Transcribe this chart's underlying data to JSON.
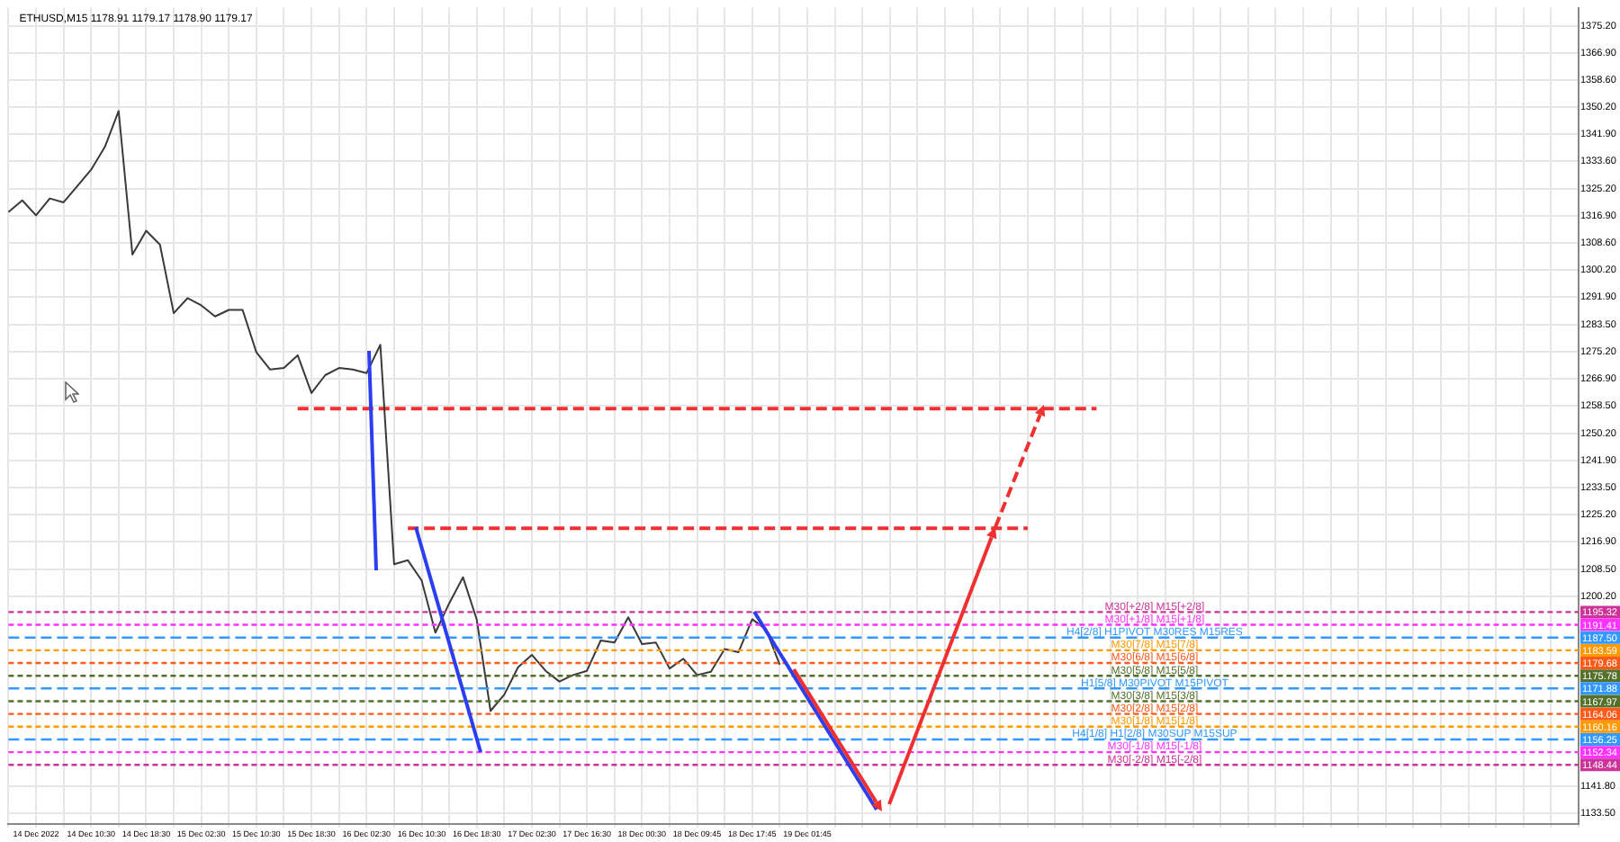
{
  "chart_data": {
    "type": "line",
    "title": "ETHUSD,M15 1178.91 1179.17 1178.90 1179.17",
    "categories": [
      null,
      null,
      "14 Dec 2022",
      null,
      null,
      null,
      "14 Dec 10:30",
      null,
      null,
      null,
      "14 Dec 18:30",
      null,
      null,
      null,
      "15 Dec 02:30",
      null,
      null,
      null,
      "15 Dec 10:30",
      null,
      null,
      null,
      "15 Dec 18:30",
      null,
      null,
      null,
      "16 Dec 02:30",
      null,
      null,
      null,
      "16 Dec 10:30",
      null,
      null,
      null,
      "16 Dec 18:30",
      null,
      null,
      null,
      "17 Dec 02:30",
      null,
      null,
      null,
      "17 Dec 16:30",
      null,
      null,
      null,
      "18 Dec 00:30",
      null,
      null,
      null,
      "18 Dec 09:45",
      null,
      null,
      null,
      "18 Dec 17:45",
      null,
      null,
      null,
      "19 Dec 01:45",
      null,
      null,
      null,
      null,
      null,
      null,
      null,
      null,
      null,
      null,
      null,
      null,
      null,
      null,
      null,
      null,
      null,
      null,
      null,
      null,
      null,
      null,
      null,
      null,
      null,
      null,
      null,
      null,
      null,
      null,
      null,
      null,
      null,
      null,
      null,
      null,
      null,
      null,
      null,
      null,
      null,
      null,
      null,
      null,
      null,
      null,
      null,
      null,
      null,
      null,
      null,
      null,
      null,
      null,
      null,
      null
    ],
    "ylim": [
      1130.3,
      1380.7
    ],
    "yticks": [
      {
        "value": 1375.2,
        "label": "1375.20"
      },
      {
        "value": 1366.9,
        "label": "1366.90"
      },
      {
        "value": 1358.6,
        "label": "1358.60"
      },
      {
        "value": 1350.2,
        "label": "1350.20"
      },
      {
        "value": 1341.9,
        "label": "1341.90"
      },
      {
        "value": 1333.6,
        "label": "1333.60"
      },
      {
        "value": 1325.2,
        "label": "1325.20"
      },
      {
        "value": 1316.9,
        "label": "1316.90"
      },
      {
        "value": 1308.6,
        "label": "1308.60"
      },
      {
        "value": 1300.2,
        "label": "1300.20"
      },
      {
        "value": 1291.9,
        "label": "1291.90"
      },
      {
        "value": 1283.5,
        "label": "1283.50"
      },
      {
        "value": 1275.2,
        "label": "1275.20"
      },
      {
        "value": 1266.9,
        "label": "1266.90"
      },
      {
        "value": 1258.5,
        "label": "1258.50"
      },
      {
        "value": 1250.2,
        "label": "1250.20"
      },
      {
        "value": 1241.9,
        "label": "1241.90"
      },
      {
        "value": 1233.5,
        "label": "1233.50"
      },
      {
        "value": 1225.2,
        "label": "1225.20"
      },
      {
        "value": 1216.9,
        "label": "1216.90"
      },
      {
        "value": 1208.5,
        "label": "1208.50"
      },
      {
        "value": 1200.2,
        "label": "1200.20"
      },
      {
        "value": 1141.8,
        "label": "1141.80"
      },
      {
        "value": 1133.5,
        "label": "1133.50"
      }
    ],
    "grid": true,
    "legend": false,
    "marker": "none",
    "annotations": [
      {
        "text": "1195.32",
        "y": 1195.32
      },
      {
        "text": "1191.41",
        "y": 1191.41
      },
      {
        "text": "1187.50",
        "y": 1187.5
      },
      {
        "text": "1183.59",
        "y": 1183.59
      },
      {
        "text": "1179.68",
        "y": 1179.68
      },
      {
        "text": "1175.78",
        "y": 1175.78
      },
      {
        "text": "1171.88",
        "y": 1171.88
      },
      {
        "text": "1167.97",
        "y": 1167.97
      },
      {
        "text": "1164.06",
        "y": 1164.06
      },
      {
        "text": "1160.16",
        "y": 1160.16
      },
      {
        "text": "1156.25",
        "y": 1156.25
      },
      {
        "text": "1152.34",
        "y": 1152.34
      },
      {
        "text": "1148.44",
        "y": 1148.44
      }
    ],
    "series": [
      {
        "color": "#3a3a3a",
        "line_style": "solid",
        "values": [
          1318,
          1321.6,
          1317,
          1322.2,
          1321,
          1326,
          1331,
          1338,
          1349,
          1305,
          1312.3,
          1308,
          1287,
          1291.6,
          1289.4,
          1286,
          1288,
          1288,
          1275,
          1269.7,
          1270.2,
          1274.1,
          1262.5,
          1268,
          1270.2,
          1269.7,
          1268.6,
          1277.3,
          1210,
          1211.2,
          1205,
          1189,
          1198,
          1206,
          1193,
          1165,
          1170,
          1178.4,
          1182.2,
          1177.3,
          1174,
          1176,
          1177.3,
          1186.6,
          1186,
          1193.7,
          1185.5,
          1186,
          1178,
          1181,
          1176,
          1177,
          1184,
          1183,
          1193.1,
          1190,
          1179.2,
          null,
          null,
          null,
          null,
          null,
          null,
          null,
          null,
          null,
          null,
          null,
          null,
          null,
          null,
          null,
          null,
          null,
          null,
          null,
          null,
          null,
          null,
          null,
          null,
          null,
          null,
          null,
          null,
          null,
          null,
          null,
          null,
          null,
          null,
          null,
          null,
          null,
          null,
          null,
          null,
          null,
          null,
          null,
          null,
          null,
          null,
          null,
          null,
          null,
          null,
          null,
          null,
          null,
          null,
          null,
          null,
          null,
          null
        ]
      },
      {
        "color": "#f03030",
        "line_style": "dashed",
        "values": [
          null,
          null,
          null,
          null,
          null,
          null,
          null,
          null,
          null,
          null,
          null,
          null,
          null,
          null,
          null,
          null,
          null,
          null,
          null,
          null,
          null,
          1257.7,
          null,
          null,
          null,
          null,
          null,
          null,
          null,
          null,
          null,
          null,
          null,
          null,
          null,
          null,
          null,
          null,
          null,
          null,
          null,
          null,
          null,
          null,
          null,
          null,
          null,
          null,
          null,
          null,
          null,
          null,
          null,
          null,
          null,
          null,
          null,
          null,
          null,
          null,
          null,
          null,
          null,
          null,
          null,
          null,
          null,
          null,
          null,
          null,
          null,
          null,
          null,
          null,
          null,
          null,
          null,
          null,
          null,
          1257.7,
          null,
          null,
          null,
          null,
          null,
          null,
          null,
          null,
          null,
          null,
          null,
          null,
          null,
          null,
          null,
          null,
          null,
          null,
          null,
          null,
          null,
          null,
          null,
          null,
          null,
          null,
          null,
          null,
          null,
          null,
          null,
          null,
          null,
          null,
          null
        ]
      },
      {
        "color": "#f03030",
        "line_style": "dashed",
        "values": [
          null,
          null,
          null,
          null,
          null,
          null,
          null,
          null,
          null,
          null,
          null,
          null,
          null,
          null,
          null,
          null,
          null,
          null,
          null,
          null,
          null,
          null,
          null,
          null,
          null,
          null,
          null,
          null,
          null,
          1221.0,
          null,
          null,
          null,
          null,
          null,
          null,
          null,
          null,
          null,
          null,
          null,
          null,
          null,
          null,
          null,
          null,
          null,
          null,
          null,
          null,
          null,
          null,
          null,
          null,
          null,
          null,
          null,
          null,
          null,
          null,
          null,
          null,
          null,
          null,
          null,
          null,
          null,
          null,
          null,
          null,
          null,
          null,
          null,
          null,
          1221.0,
          null,
          null,
          null,
          null,
          null,
          null,
          null,
          null,
          null,
          null,
          null,
          null,
          null,
          null,
          null,
          null,
          null,
          null,
          null,
          null,
          null,
          null,
          null,
          null,
          null,
          null,
          null,
          null,
          null,
          null,
          null,
          null,
          null,
          null,
          null,
          null,
          null,
          null,
          null,
          null
        ]
      }
    ],
    "ref_lines": [
      {
        "axis": "y",
        "value": 1195.32,
        "label": "M30[+2/8] M15[+2/8]",
        "color": "#cc3399",
        "line_style": "dotted"
      },
      {
        "axis": "y",
        "value": 1191.41,
        "label": "M30[+1/8] M15[+1/8]",
        "color": "#ff33ff",
        "line_style": "dotted"
      },
      {
        "axis": "y",
        "value": 1187.5,
        "label": "H4[2/8] H1PIVOT M30RES M15RES",
        "color": "#3399ff",
        "line_style": "dashed"
      },
      {
        "axis": "y",
        "value": 1183.59,
        "label": "M30[7/8] M15[7/8]",
        "color": "#ff9900",
        "line_style": "dotted"
      },
      {
        "axis": "y",
        "value": 1179.68,
        "label": "M30[6/8] M15[6/8]",
        "color": "#ff5a1a",
        "line_style": "dotted"
      },
      {
        "axis": "y",
        "value": 1175.78,
        "label": "M30[5/8] M15[5/8]",
        "color": "#55702a",
        "line_style": "dotted"
      },
      {
        "axis": "y",
        "value": 1171.88,
        "label": "H1[5/8] M30PIVOT M15PIVOT",
        "color": "#3399ff",
        "line_style": "dashed"
      },
      {
        "axis": "y",
        "value": 1167.97,
        "label": "M30[3/8] M15[3/8]",
        "color": "#55702a",
        "line_style": "dotted"
      },
      {
        "axis": "y",
        "value": 1164.06,
        "label": "M30[2/8] M15[2/8]",
        "color": "#ff5a1a",
        "line_style": "dotted"
      },
      {
        "axis": "y",
        "value": 1160.16,
        "label": "M30[1/8] M15[1/8]",
        "color": "#ff9900",
        "line_style": "dotted"
      },
      {
        "axis": "y",
        "value": 1156.25,
        "label": "H4[1/8] H1[2/8] M30SUP M15SUP",
        "color": "#3399ff",
        "line_style": "dashed"
      },
      {
        "axis": "y",
        "value": 1152.34,
        "label": "M30[-1/8] M15[-1/8]",
        "color": "#ff33ff",
        "line_style": "dotted"
      },
      {
        "axis": "y",
        "value": 1148.44,
        "label": "M30[-2/8] M15[-2/8]",
        "color": "#cc3399",
        "line_style": "dotted"
      }
    ]
  }
}
